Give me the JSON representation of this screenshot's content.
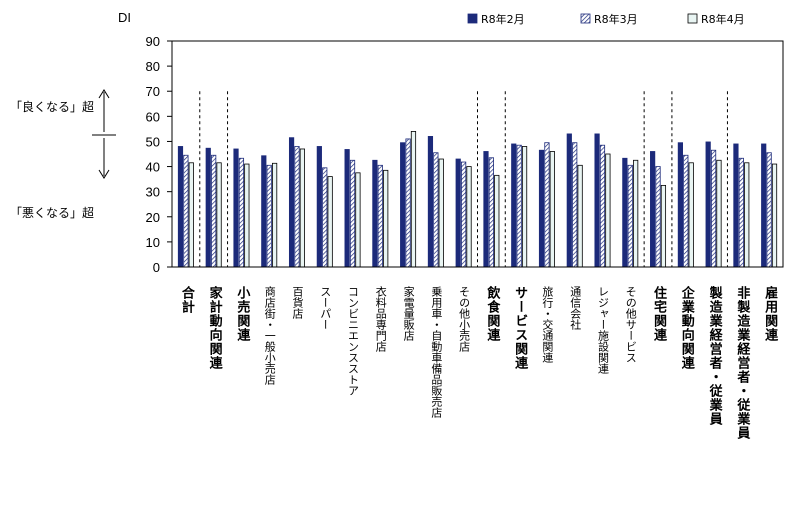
{
  "labels": {
    "y_axis_unit": "DI",
    "good": "「良くなる」超",
    "bad": "「悪くなる」超"
  },
  "colors": {
    "feb": "#1c2a7a",
    "mar_stripe": "#1c2a7a",
    "apr": "#e9f5f3"
  },
  "chart_data": {
    "type": "bar",
    "ylim": [
      0,
      90
    ],
    "yticks": [
      "0",
      "10",
      "20",
      "30",
      "40",
      "50",
      "60",
      "70",
      "80",
      "90"
    ],
    "legend_position": "top-right",
    "grid": false,
    "categories": [
      "合計",
      "家計動向関連",
      "小売関連",
      "商店街・一般小売店",
      "百貨店",
      "スーパー",
      "コンビニエンスストア",
      "衣料品専門店",
      "家電量販店",
      "乗用車・自動車備品販売店",
      "その他小売店",
      "飲食関連",
      "サービス関連",
      "旅行・交通関連",
      "通信会社",
      "レジャー施設関連",
      "その他サービス",
      "住宅関連",
      "企業動向関連",
      "製造業経営者・従業員",
      "非製造業経営者・従業員",
      "雇用関連"
    ],
    "category_style": [
      "main",
      "main",
      "main",
      "sub",
      "sub",
      "sub",
      "sub",
      "sub",
      "sub",
      "sub",
      "sub",
      "main",
      "main",
      "sub",
      "sub",
      "sub",
      "sub",
      "main",
      "main",
      "main",
      "main",
      "main"
    ],
    "series": [
      {
        "name": "R8年2月",
        "values": [
          48.0,
          47.3,
          47.0,
          44.3,
          51.5,
          48.0,
          46.8,
          42.5,
          49.5,
          52.0,
          43.0,
          46.0,
          49.0,
          46.5,
          53.0,
          53.0,
          43.3,
          46.0,
          49.5,
          49.8,
          49.0,
          49.0
        ]
      },
      {
        "name": "R8年3月",
        "values": [
          44.5,
          44.5,
          43.3,
          40.5,
          48.0,
          39.5,
          42.5,
          40.5,
          51.0,
          45.5,
          41.8,
          43.5,
          48.5,
          49.5,
          49.5,
          48.5,
          40.5,
          40.0,
          44.5,
          46.5,
          43.3,
          45.5
        ]
      },
      {
        "name": "R8年4月",
        "values": [
          41.5,
          41.5,
          41.0,
          41.3,
          47.0,
          36.0,
          37.5,
          38.5,
          54.0,
          43.0,
          40.0,
          36.5,
          48.0,
          46.0,
          40.5,
          45.0,
          42.5,
          32.5,
          41.5,
          42.5,
          41.5,
          41.0
        ]
      }
    ],
    "divider_after_index": [
      0,
      1,
      10,
      11,
      16,
      17,
      19
    ]
  }
}
